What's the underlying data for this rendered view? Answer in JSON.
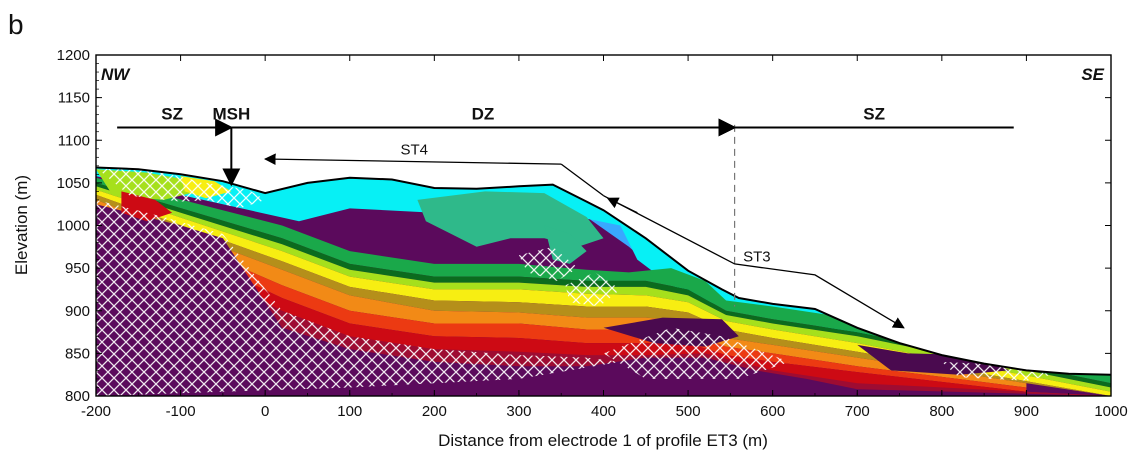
{
  "panel_label": "b",
  "chart_data": {
    "type": "heatmap",
    "title": "",
    "xlabel": "Distance from electrode 1 of profile ET3 (m)",
    "ylabel": "Elevation (m)",
    "xlim": [
      -200,
      1000
    ],
    "ylim": [
      800,
      1200
    ],
    "x_ticks": [
      -200,
      -100,
      0,
      100,
      200,
      300,
      400,
      500,
      600,
      700,
      800,
      900,
      1000
    ],
    "y_ticks": [
      800,
      850,
      900,
      950,
      1000,
      1050,
      1100,
      1150,
      1200
    ],
    "corner_labels": {
      "left": "NW",
      "right": "SE"
    },
    "zones": [
      {
        "label": "SZ",
        "from": -175,
        "to": -45
      },
      {
        "label": "MSH",
        "at": -40
      },
      {
        "label": "DZ",
        "from": -40,
        "to": 555
      },
      {
        "label": "SZ",
        "from": 555,
        "to": 885
      }
    ],
    "zone_line_elevation": 1115,
    "msh_arrow": {
      "x": -40,
      "y_from": 1115,
      "y_to": 1048
    },
    "dashed_boundary_x": 555,
    "annotations": [
      {
        "label": "ST4",
        "path": [
          [
            350,
            1072
          ],
          [
            0,
            1078
          ]
        ],
        "extra_path": [
          [
            350,
            1072
          ],
          [
            400,
            1035
          ]
        ],
        "arrow_at": [
          415,
          1030
        ]
      },
      {
        "label": "ST3",
        "path": [
          [
            400,
            1035
          ],
          [
            555,
            955
          ],
          [
            650,
            942
          ],
          [
            755,
            880
          ]
        ],
        "arrow_at": [
          755,
          880
        ]
      }
    ],
    "surface_profile": [
      [
        -200,
        1068
      ],
      [
        -150,
        1066
      ],
      [
        -100,
        1060
      ],
      [
        -50,
        1052
      ],
      [
        0,
        1038
      ],
      [
        50,
        1050
      ],
      [
        100,
        1056
      ],
      [
        150,
        1054
      ],
      [
        200,
        1044
      ],
      [
        250,
        1043
      ],
      [
        300,
        1046
      ],
      [
        340,
        1048
      ],
      [
        380,
        1028
      ],
      [
        400,
        1018
      ],
      [
        450,
        985
      ],
      [
        500,
        947
      ],
      [
        540,
        925
      ],
      [
        560,
        915
      ],
      [
        600,
        908
      ],
      [
        650,
        902
      ],
      [
        700,
        880
      ],
      [
        750,
        862
      ],
      [
        800,
        848
      ],
      [
        850,
        838
      ],
      [
        900,
        830
      ],
      [
        950,
        826
      ],
      [
        1000,
        825
      ]
    ],
    "colors": {
      "deep_blue": "#0a1fa8",
      "blue": "#2e5bf0",
      "light_blue": "#39a8ff",
      "cyan": "#07f0f5",
      "sea_green": "#2fb98a",
      "green": "#1aa84a",
      "dark_green": "#0b6b1e",
      "lime": "#a6e01c",
      "yellow": "#f7ee12",
      "olive": "#b58f1a",
      "orange": "#f28a16",
      "red_orange": "#ec3a12",
      "red": "#cd0a14",
      "crimson": "#9e0c32",
      "purple": "#5b0a5c",
      "dark_purple": "#4a0a4f"
    },
    "grid": false,
    "legend": "none"
  }
}
